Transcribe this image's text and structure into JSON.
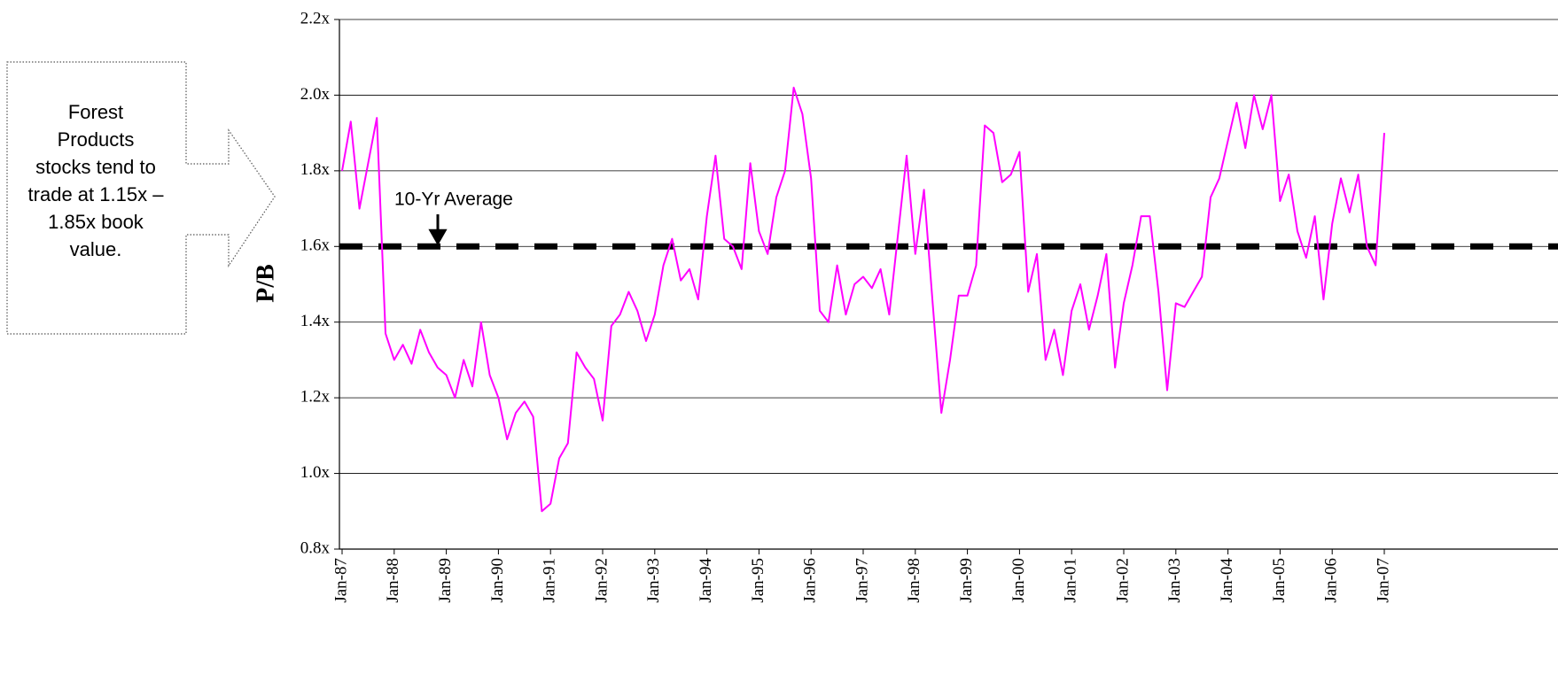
{
  "chart_data": {
    "type": "line",
    "ylabel": "P/B",
    "categories": [
      "Jan-87",
      null,
      null,
      null,
      null,
      null,
      "Jan-88",
      null,
      null,
      null,
      null,
      null,
      "Jan-89",
      null,
      null,
      null,
      null,
      null,
      "Jan-90",
      null,
      null,
      null,
      null,
      null,
      "Jan-91",
      null,
      null,
      null,
      null,
      null,
      "Jan-92",
      null,
      null,
      null,
      null,
      null,
      "Jan-93",
      null,
      null,
      null,
      null,
      null,
      "Jan-94",
      null,
      null,
      null,
      null,
      null,
      "Jan-95",
      null,
      null,
      null,
      null,
      null,
      "Jan-96",
      null,
      null,
      null,
      null,
      null,
      "Jan-97",
      null,
      null,
      null,
      null,
      null,
      "Jan-98",
      null,
      null,
      null,
      null,
      null,
      "Jan-99",
      null,
      null,
      null,
      null,
      null,
      "Jan-00",
      null,
      null,
      null,
      null,
      null,
      "Jan-01",
      null,
      null,
      null,
      null,
      null,
      "Jan-02",
      null,
      null,
      null,
      null,
      null,
      "Jan-03",
      null,
      null,
      null,
      null,
      null,
      "Jan-04",
      null,
      null,
      null,
      null,
      null,
      "Jan-05",
      null,
      null,
      null,
      null,
      null,
      "Jan-06",
      null,
      null,
      null,
      null,
      null,
      "Jan-07"
    ],
    "series": [
      {
        "name": "P/B",
        "color": "#ff00ff",
        "values": [
          1.8,
          1.93,
          1.7,
          1.82,
          1.94,
          1.37,
          1.3,
          1.34,
          1.29,
          1.38,
          1.32,
          1.28,
          1.26,
          1.2,
          1.3,
          1.23,
          1.4,
          1.26,
          1.2,
          1.09,
          1.16,
          1.19,
          1.15,
          0.9,
          0.92,
          1.04,
          1.08,
          1.32,
          1.28,
          1.25,
          1.14,
          1.39,
          1.42,
          1.48,
          1.43,
          1.35,
          1.42,
          1.55,
          1.62,
          1.51,
          1.54,
          1.46,
          1.68,
          1.84,
          1.62,
          1.6,
          1.54,
          1.82,
          1.64,
          1.58,
          1.73,
          1.8,
          2.02,
          1.95,
          1.78,
          1.43,
          1.4,
          1.55,
          1.42,
          1.5,
          1.52,
          1.49,
          1.54,
          1.42,
          1.63,
          1.84,
          1.58,
          1.75,
          1.45,
          1.16,
          1.3,
          1.47,
          1.47,
          1.55,
          1.92,
          1.9,
          1.77,
          1.79,
          1.85,
          1.48,
          1.58,
          1.3,
          1.38,
          1.26,
          1.43,
          1.5,
          1.38,
          1.47,
          1.58,
          1.28,
          1.45,
          1.55,
          1.68,
          1.68,
          1.48,
          1.22,
          1.45,
          1.44,
          1.48,
          1.52,
          1.73,
          1.78,
          1.88,
          1.98,
          1.86,
          2.0,
          1.91,
          2.0,
          1.72,
          1.79,
          1.64,
          1.57,
          1.68,
          1.46,
          1.66,
          1.78,
          1.69,
          1.79,
          1.6,
          1.55,
          1.9
        ]
      }
    ],
    "average": {
      "value": 1.6,
      "label": "10-Yr Average"
    },
    "ylim": [
      0.8,
      2.2
    ],
    "yticks": [
      {
        "value": 0.8,
        "label": "0.8x"
      },
      {
        "value": 1.0,
        "label": "1.0x"
      },
      {
        "value": 1.2,
        "label": "1.2x"
      },
      {
        "value": 1.4,
        "label": "1.4x"
      },
      {
        "value": 1.6,
        "label": "1.6x"
      },
      {
        "value": 1.8,
        "label": "1.8x"
      },
      {
        "value": 2.0,
        "label": "2.0x"
      },
      {
        "value": 2.2,
        "label": "2.2x"
      }
    ],
    "grid": true,
    "callout": [
      "Forest",
      "Products",
      "stocks tend to",
      "trade at 1.15x –",
      "1.85x book",
      "value."
    ]
  }
}
